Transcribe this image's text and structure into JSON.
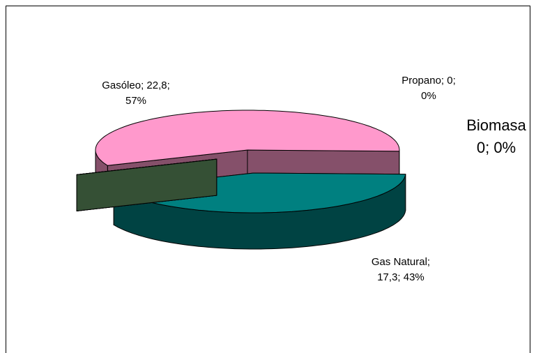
{
  "chart_data": {
    "type": "pie3d",
    "categories": [
      "Gasóleo",
      "Gas Natural",
      "Propano",
      "Biomasa"
    ],
    "values": [
      22.8,
      17.3,
      0,
      0
    ],
    "value_labels": [
      [
        "Gasóleo; 22,8;",
        "57%"
      ],
      [
        "Gas Natural;",
        "17,3; 43%"
      ],
      [
        "Propano; 0;",
        "0%"
      ],
      [
        "Biomasa",
        "0; 0%"
      ]
    ],
    "colors": [
      "#ff99cc",
      "#008080",
      "#ffffcc",
      "#669966"
    ]
  }
}
